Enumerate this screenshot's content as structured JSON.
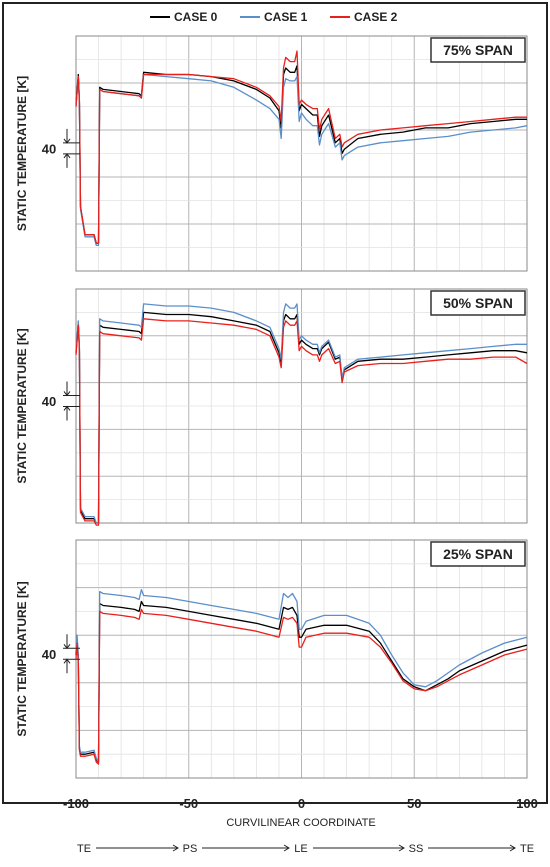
{
  "chart_data": {
    "type": "line",
    "xlabel": "CURVILINEAR COORDINATE",
    "ylabel": "STATIC TEMPERATURE [K]",
    "xlim": [
      -100,
      100
    ],
    "xticks": [
      "-100",
      "-50",
      "0",
      "50",
      "100"
    ],
    "y_annotation": "40",
    "y_annotation_value": 40,
    "legend_position": "top-center",
    "colors": {
      "CASE 0": "#000000",
      "CASE 1": "#5b8fc9",
      "CASE 2": "#e8201c"
    },
    "flow_labels": [
      "TE",
      "PS",
      "LE",
      "SS",
      "TE"
    ],
    "panels": [
      {
        "title": "75% SPAN",
        "ylim": [
          -20,
          90
        ],
        "series": [
          {
            "name": "CASE 0",
            "x": [
              -100,
              -99,
              -98.5,
              -98,
              -96,
              -92,
              -91,
              -90,
              -89.5,
              -88,
              -80,
              -72,
              -71,
              -70,
              -60,
              -50,
              -40,
              -30,
              -20,
              -14,
              -10,
              -9,
              -8,
              -7,
              -5,
              -3,
              -2,
              -1,
              0,
              2,
              5,
              7,
              8,
              9,
              12,
              15,
              17,
              18,
              19,
              25,
              35,
              45,
              55,
              65,
              75,
              85,
              95,
              100
            ],
            "y": [
              58,
              72,
              60,
              10,
              -3,
              -3,
              -7,
              -7,
              66,
              65,
              64,
              63,
              62,
              73,
              72,
              72,
              71,
              69,
              65,
              61,
              55,
              47,
              72,
              75,
              73,
              73,
              76,
              55,
              58,
              56,
              53,
              53,
              43,
              48,
              53,
              40,
              42,
              35,
              37,
              42,
              44,
              45,
              47,
              47,
              49,
              50,
              51,
              51
            ]
          },
          {
            "name": "CASE 1",
            "x": [
              -100,
              -99,
              -98.5,
              -98,
              -96,
              -92,
              -91,
              -90,
              -89.5,
              -88,
              -80,
              -72,
              -71,
              -70,
              -60,
              -50,
              -40,
              -30,
              -20,
              -14,
              -10,
              -9,
              -8,
              -7,
              -5,
              -3,
              -2,
              -1,
              0,
              2,
              5,
              7,
              8,
              9,
              12,
              15,
              17,
              18,
              19,
              25,
              35,
              45,
              55,
              65,
              75,
              85,
              95,
              100
            ],
            "y": [
              57,
              71,
              59,
              9,
              -4,
              -4,
              -8,
              -8,
              65,
              64,
              63,
              62,
              61,
              72,
              71,
              70,
              69,
              66,
              60,
              56,
              51,
              42,
              66,
              70,
              69,
              69,
              71,
              50,
              54,
              51,
              48,
              48,
              39,
              44,
              49,
              38,
              40,
              32,
              34,
              38,
              40,
              41,
              42,
              43,
              45,
              46,
              47,
              48
            ]
          },
          {
            "name": "CASE 2",
            "x": [
              -100,
              -99,
              -98.5,
              -98,
              -96,
              -92,
              -91,
              -90,
              -89.5,
              -88,
              -80,
              -72,
              -71,
              -70,
              -60,
              -50,
              -40,
              -30,
              -20,
              -14,
              -10,
              -9,
              -8,
              -7,
              -5,
              -3,
              -2,
              -1,
              0,
              2,
              5,
              7,
              8,
              9,
              12,
              15,
              17,
              18,
              19,
              25,
              35,
              45,
              55,
              65,
              75,
              85,
              95,
              100
            ],
            "y": [
              57,
              71,
              59,
              10,
              -3,
              -3,
              -7,
              -7,
              65,
              64,
              63,
              62,
              61,
              72,
              72,
              72,
              71,
              70,
              66,
              62,
              57,
              50,
              75,
              80,
              78,
              78,
              83,
              58,
              60,
              58,
              56,
              56,
              46,
              51,
              56,
              42,
              44,
              38,
              40,
              44,
              46,
              47,
              48,
              49,
              50,
              51,
              52,
              52
            ]
          }
        ]
      },
      {
        "title": "50% SPAN",
        "ylim": [
          -40,
          70
        ],
        "series": [
          {
            "name": "CASE 0",
            "x": [
              -100,
              -99,
              -98.5,
              -98,
              -96,
              -92,
              -91,
              -90,
              -89.5,
              -88,
              -80,
              -72,
              -71,
              -70,
              -60,
              -50,
              -40,
              -30,
              -20,
              -14,
              -10,
              -9,
              -8,
              -7,
              -5,
              -3,
              -2,
              -1,
              0,
              2,
              5,
              7,
              8,
              9,
              12,
              15,
              17,
              18,
              19,
              25,
              35,
              45,
              55,
              65,
              75,
              85,
              95,
              100
            ],
            "y": [
              40,
              54,
              42,
              -34,
              -38,
              -38,
              -40,
              -40,
              53,
              52,
              51,
              50,
              49,
              59,
              58,
              58,
              57,
              55,
              53,
              50,
              40,
              35,
              55,
              58,
              56,
              56,
              58,
              44,
              46,
              44,
              42,
              42,
              39,
              42,
              45,
              37,
              38,
              27,
              32,
              36,
              37,
              37,
              38,
              39,
              40,
              41,
              41,
              40
            ]
          },
          {
            "name": "CASE 1",
            "x": [
              -100,
              -99,
              -98.5,
              -98,
              -96,
              -92,
              -91,
              -90,
              -89.5,
              -88,
              -80,
              -72,
              -71,
              -70,
              -60,
              -50,
              -40,
              -30,
              -20,
              -14,
              -10,
              -9,
              -8,
              -7,
              -5,
              -3,
              -2,
              -1,
              0,
              2,
              5,
              7,
              8,
              9,
              12,
              15,
              17,
              18,
              19,
              25,
              35,
              45,
              55,
              65,
              75,
              85,
              95,
              100
            ],
            "y": [
              41,
              55,
              43,
              -33,
              -37,
              -37,
              -40,
              -40,
              56,
              55,
              54,
              53,
              52,
              63,
              62,
              62,
              61,
              59,
              55,
              52,
              42,
              37,
              59,
              63,
              61,
              61,
              63,
              46,
              48,
              46,
              44,
              44,
              40,
              43,
              46,
              38,
              39,
              28,
              33,
              37,
              38,
              39,
              40,
              41,
              42,
              43,
              44,
              44
            ]
          },
          {
            "name": "CASE 2",
            "x": [
              -100,
              -99,
              -98.5,
              -98,
              -96,
              -92,
              -91,
              -90,
              -89.5,
              -88,
              -80,
              -72,
              -71,
              -70,
              -60,
              -50,
              -40,
              -30,
              -20,
              -14,
              -10,
              -9,
              -8,
              -7,
              -5,
              -3,
              -2,
              -1,
              0,
              2,
              5,
              7,
              8,
              9,
              12,
              15,
              17,
              18,
              19,
              25,
              35,
              45,
              55,
              65,
              75,
              85,
              95,
              100
            ],
            "y": [
              39,
              53,
              41,
              -35,
              -39,
              -39,
              -41,
              -41,
              50,
              49,
              48,
              47,
              46,
              56,
              55,
              55,
              54,
              53,
              51,
              48,
              38,
              33,
              52,
              55,
              53,
              53,
              55,
              41,
              43,
              41,
              39,
              39,
              36,
              39,
              42,
              35,
              36,
              26,
              31,
              34,
              35,
              35,
              36,
              37,
              37,
              38,
              38,
              35
            ]
          }
        ]
      },
      {
        "title": "25% SPAN",
        "ylim": [
          -40,
          80
        ],
        "series": [
          {
            "name": "CASE 0",
            "x": [
              -100,
              -99.5,
              -99,
              -98.5,
              -98,
              -96,
              -92,
              -91,
              -90,
              -89.5,
              -88,
              -80,
              -74,
              -72,
              -71,
              -70,
              -60,
              -50,
              -40,
              -30,
              -20,
              -10,
              -8,
              -6,
              -4,
              -2,
              -1,
              0,
              2,
              10,
              20,
              30,
              35,
              40,
              45,
              50,
              55,
              60,
              65,
              70,
              80,
              90,
              100
            ],
            "y": [
              22,
              30,
              20,
              -25,
              -28,
              -28,
              -27,
              -31,
              -32,
              48,
              47,
              46,
              45,
              44,
              49,
              47,
              46,
              44,
              42,
              40,
              38,
              35,
              46,
              45,
              46,
              42,
              31,
              31,
              35,
              37,
              37,
              34,
              28,
              19,
              10,
              6,
              4,
              7,
              10,
              14,
              19,
              24,
              27
            ]
          },
          {
            "name": "CASE 1",
            "x": [
              -100,
              -99.5,
              -99,
              -98.5,
              -98,
              -96,
              -92,
              -91,
              -90,
              -89.5,
              -88,
              -80,
              -74,
              -72,
              -71,
              -70,
              -60,
              -50,
              -40,
              -30,
              -20,
              -10,
              -8,
              -6,
              -4,
              -2,
              -1,
              0,
              2,
              10,
              20,
              30,
              35,
              40,
              45,
              50,
              55,
              60,
              65,
              70,
              80,
              90,
              100
            ],
            "y": [
              24,
              32,
              22,
              -24,
              -27,
              -27,
              -26,
              -30,
              -32,
              54,
              53,
              52,
              51,
              50,
              55,
              52,
              51,
              49,
              47,
              45,
              43,
              40,
              53,
              51,
              53,
              49,
              35,
              35,
              39,
              42,
              42,
              38,
              32,
              22,
              13,
              7,
              6,
              9,
              13,
              17,
              23,
              28,
              31
            ]
          },
          {
            "name": "CASE 2",
            "x": [
              -100,
              -99.5,
              -99,
              -98.5,
              -98,
              -96,
              -92,
              -91,
              -90,
              -89.5,
              -88,
              -80,
              -74,
              -72,
              -71,
              -70,
              -60,
              -50,
              -40,
              -30,
              -20,
              -10,
              -8,
              -6,
              -4,
              -2,
              -1,
              0,
              2,
              10,
              20,
              30,
              35,
              40,
              45,
              50,
              55,
              60,
              65,
              70,
              80,
              90,
              100
            ],
            "y": [
              20,
              28,
              18,
              -26,
              -29,
              -29,
              -28,
              -32,
              -33,
              44,
              43,
              42,
              41,
              40,
              45,
              43,
              42,
              40,
              38,
              36,
              34,
              31,
              41,
              40,
              41,
              38,
              26,
              26,
              31,
              33,
              33,
              31,
              26,
              18,
              9,
              5,
              4,
              6,
              9,
              12,
              17,
              22,
              25
            ]
          }
        ]
      }
    ]
  }
}
